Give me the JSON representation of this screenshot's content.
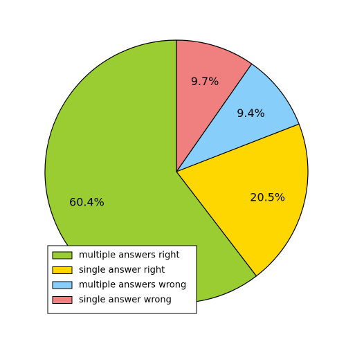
{
  "chart_data": {
    "type": "pie",
    "title": "",
    "slices": [
      {
        "name": "multiple answers right",
        "value": 60.4,
        "label": "60.4%",
        "color": "#9ACD32"
      },
      {
        "name": "single answer right",
        "value": 20.5,
        "label": "20.5%",
        "color": "#FFD700"
      },
      {
        "name": "multiple answers wrong",
        "value": 9.4,
        "label": "9.4%",
        "color": "#87CEFA"
      },
      {
        "name": "single answer wrong",
        "value": 9.7,
        "label": "9.7%",
        "color": "#F08080"
      }
    ],
    "start_angle_deg": 90,
    "direction": "counterclockwise",
    "edge_color": "#000000",
    "legend": {
      "placement": "lower-left"
    }
  }
}
